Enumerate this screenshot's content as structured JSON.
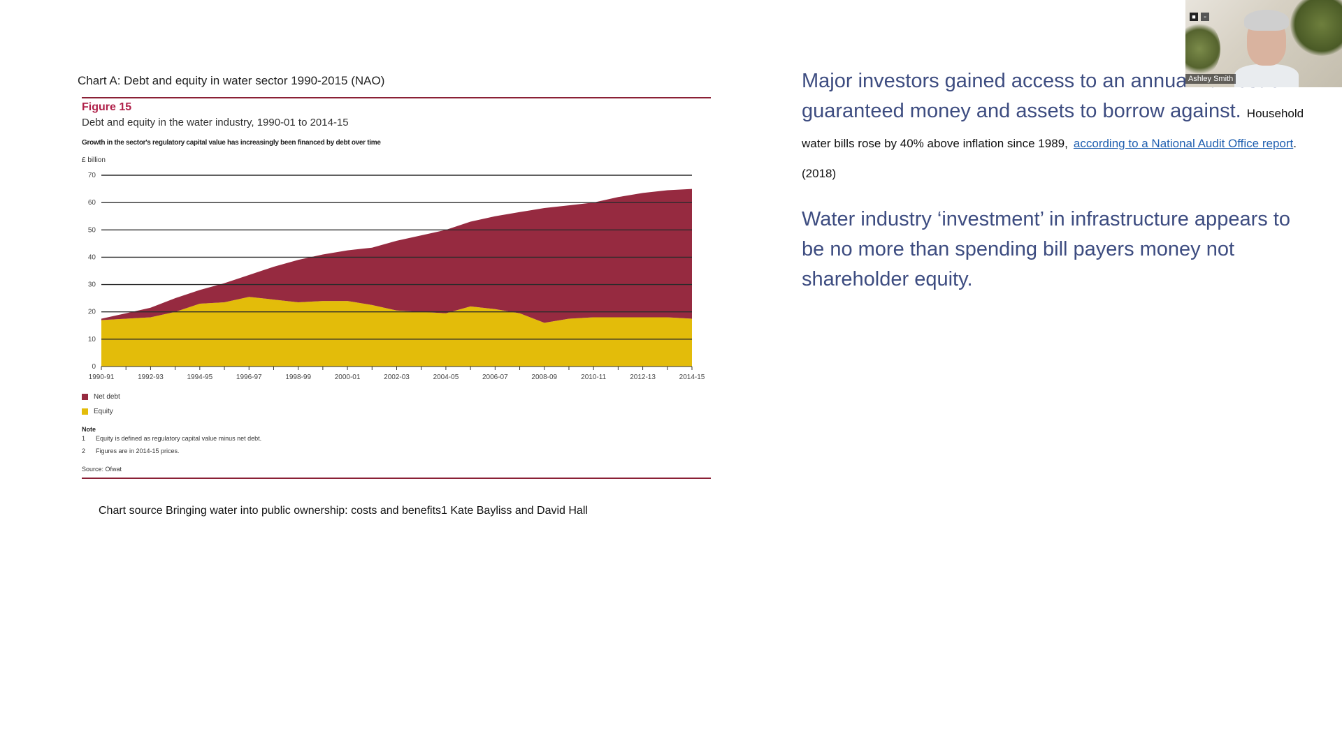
{
  "slide": {
    "chart_caption": "Chart A: Debt and equity in water sector 1990-2015 (NAO)",
    "chart_source": "Chart source Bringing water into public ownership: costs and benefits1     Kate Bayliss and David Hall"
  },
  "figure": {
    "label": "Figure 15",
    "title": "Debt and equity in the water industry, 1990-01 to 2014-15",
    "subtitle": "Growth in the sector's regulatory capital value has increasingly been financed by debt over time",
    "unit": "£ billion",
    "legend": {
      "debt": "Net debt",
      "equity": "Equity"
    },
    "notes_title": "Note",
    "notes": [
      {
        "num": "1",
        "text": "Equity is defined as regulatory capital value minus net debt."
      },
      {
        "num": "2",
        "text": "Figures are in 2014-15 prices."
      }
    ],
    "source": "Source: Ofwat"
  },
  "chart_data": {
    "type": "area",
    "title": "Debt and equity in the water industry, 1990-01 to 2014-15",
    "ylabel": "£ billion",
    "ylim": [
      0,
      70
    ],
    "yticks": [
      0,
      10,
      20,
      30,
      40,
      50,
      60,
      70
    ],
    "tick_labels": [
      "1990-91",
      "1992-93",
      "1994-95",
      "1996-97",
      "1998-99",
      "2000-01",
      "2002-03",
      "2004-05",
      "2006-07",
      "2008-09",
      "2010-11",
      "2012-13",
      "2014-15"
    ],
    "x": [
      "1990-91",
      "1991-92",
      "1992-93",
      "1993-94",
      "1994-95",
      "1995-96",
      "1996-97",
      "1997-98",
      "1998-99",
      "1999-00",
      "2000-01",
      "2001-02",
      "2002-03",
      "2003-04",
      "2004-05",
      "2005-06",
      "2006-07",
      "2007-08",
      "2008-09",
      "2009-10",
      "2010-11",
      "2011-12",
      "2012-13",
      "2013-14",
      "2014-15"
    ],
    "stacked": true,
    "series": [
      {
        "name": "Equity",
        "color": "#e3bc0a",
        "values": [
          17,
          17.5,
          18,
          20,
          23,
          23.5,
          25.5,
          24.5,
          23.5,
          24,
          24,
          22.5,
          20.5,
          20,
          19.5,
          22,
          21,
          19.5,
          16,
          17.5,
          18,
          18,
          18,
          18,
          17.5
        ]
      },
      {
        "name": "Net debt",
        "color": "#962a40",
        "values": [
          0.5,
          2,
          3.5,
          5,
          5,
          7,
          8,
          12,
          15.5,
          17,
          18.5,
          21,
          25.5,
          28,
          30.5,
          31,
          34,
          37,
          42,
          41.5,
          42,
          44,
          45.5,
          46.5,
          47.5
        ]
      }
    ]
  },
  "text_panel": {
    "heading1": "Major investors gained access to an annual harvest of guaranteed money and assets to borrow against.",
    "small_a": "Household water bills rose by 40% above inflation since 1989,",
    "link": "according to a National Audit Office report",
    "small_b": ". (2018)",
    "heading2": "Water industry ‘investment’ in infrastructure appears to be no more than spending bill payers money not shareholder equity."
  },
  "video": {
    "name": "Ashley Smith"
  }
}
